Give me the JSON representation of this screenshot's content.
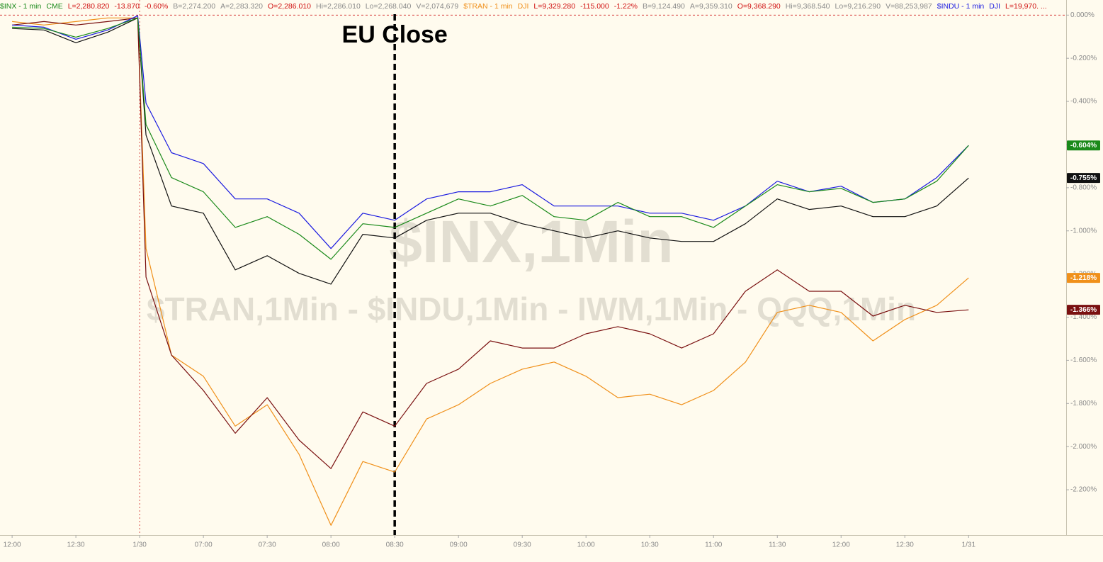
{
  "chart_data": {
    "type": "line",
    "quote_lines": [
      {
        "name": "$INX - 1 min",
        "color": "#1a8a1a",
        "fields": [
          {
            "text": "CME",
            "color": "#1a8a1a"
          },
          {
            "text": "L=2,280.820",
            "color": "#d01010"
          },
          {
            "text": "-13.870",
            "color": "#d01010"
          },
          {
            "text": "-0.60%",
            "color": "#d01010"
          },
          {
            "text": "B=2,274.200",
            "color": "#8a8a8a"
          },
          {
            "text": "A=2,283.320",
            "color": "#8a8a8a"
          },
          {
            "text": "O=2,286.010",
            "color": "#d01010"
          },
          {
            "text": "Hi=2,286.010",
            "color": "#8a8a8a"
          },
          {
            "text": "Lo=2,268.040",
            "color": "#8a8a8a"
          },
          {
            "text": "V=2,074,679",
            "color": "#8a8a8a"
          }
        ]
      },
      {
        "name": "$TRAN - 1 min",
        "color": "#f0901a",
        "fields": [
          {
            "text": "DJI",
            "color": "#f0901a"
          },
          {
            "text": "L=9,329.280",
            "color": "#d01010"
          },
          {
            "text": "-115.000",
            "color": "#d01010"
          },
          {
            "text": "-1.22%",
            "color": "#d01010"
          },
          {
            "text": "B=9,124.490",
            "color": "#8a8a8a"
          },
          {
            "text": "A=9,359.310",
            "color": "#8a8a8a"
          },
          {
            "text": "O=9,368.290",
            "color": "#d01010"
          },
          {
            "text": "Hi=9,368.540",
            "color": "#8a8a8a"
          },
          {
            "text": "Lo=9,216.290",
            "color": "#8a8a8a"
          },
          {
            "text": "V=88,253,987",
            "color": "#8a8a8a"
          }
        ]
      },
      {
        "name": "$INDU - 1 min",
        "color": "#1a1ae0",
        "fields": [
          {
            "text": "DJI",
            "color": "#1a1ae0"
          },
          {
            "text": "L=19,970. ...",
            "color": "#d01010"
          }
        ]
      }
    ],
    "watermark": [
      "$INX,1Min",
      "$TRAN,1Min - $INDU,1Min - IWM,1Min - QQQ,1Min"
    ],
    "annotation": {
      "text": "EU Close",
      "x": 6
    },
    "x": [
      0,
      0.5,
      1,
      1.5,
      1.97,
      2.1,
      2.5,
      3,
      3.5,
      4,
      4.5,
      5,
      5.5,
      6,
      6.5,
      7,
      7.5,
      8,
      8.5,
      9,
      9.5,
      10,
      10.5,
      11,
      11.5,
      12,
      12.5,
      13,
      13.5,
      14,
      14.5,
      15
    ],
    "xlim": [
      -0.19,
      16.53
    ],
    "xticks": [
      {
        "value": 0,
        "label": "12:00"
      },
      {
        "value": 1,
        "label": "12:30"
      },
      {
        "value": 2,
        "label": "1/30"
      },
      {
        "value": 3,
        "label": "07:00"
      },
      {
        "value": 4,
        "label": "07:30"
      },
      {
        "value": 5,
        "label": "08:00"
      },
      {
        "value": 6,
        "label": "08:30"
      },
      {
        "value": 7,
        "label": "09:00"
      },
      {
        "value": 8,
        "label": "09:30"
      },
      {
        "value": 9,
        "label": "10:00"
      },
      {
        "value": 10,
        "label": "10:30"
      },
      {
        "value": 11,
        "label": "11:00"
      },
      {
        "value": 12,
        "label": "11:30"
      },
      {
        "value": 13,
        "label": "12:00"
      },
      {
        "value": 14,
        "label": "12:30"
      },
      {
        "value": 15,
        "label": "1/31"
      }
    ],
    "ylim": [
      -2.41,
      0.07
    ],
    "yticks": [
      {
        "value": 0,
        "label": "0.000%"
      },
      {
        "value": -0.2,
        "label": "-0.200%"
      },
      {
        "value": -0.4,
        "label": "-0.400%"
      },
      {
        "value": -0.6,
        "label": "-0.600%"
      },
      {
        "value": -0.8,
        "label": "-0.800%"
      },
      {
        "value": -1,
        "label": "-1.000%"
      },
      {
        "value": -1.2,
        "label": "-1.200%"
      },
      {
        "value": -1.4,
        "label": "-1.400%"
      },
      {
        "value": -1.6,
        "label": "-1.600%"
      },
      {
        "value": -1.8,
        "label": "-1.800%"
      },
      {
        "value": -2,
        "label": "-2.000%"
      },
      {
        "value": -2.2,
        "label": "-2.200%"
      }
    ],
    "series": [
      {
        "color": "#f0901a",
        "values": [
          -0.03,
          -0.046,
          -0.03,
          -0.013,
          -0.013,
          -1.082,
          -1.576,
          -1.674,
          -1.905,
          -1.806,
          -2.036,
          -2.365,
          -2.069,
          -2.118,
          -1.872,
          -1.806,
          -1.707,
          -1.641,
          -1.608,
          -1.674,
          -1.773,
          -1.757,
          -1.806,
          -1.74,
          -1.609,
          -1.378,
          -1.345,
          -1.378,
          -1.51,
          -1.411,
          -1.345,
          -1.218
        ],
        "value_labels": [
          null,
          null,
          null,
          null,
          null,
          null,
          null,
          null,
          null,
          null,
          null,
          null,
          null,
          null,
          null,
          null,
          null,
          null,
          null,
          null,
          null,
          null,
          null,
          null,
          null,
          null,
          null,
          null,
          null,
          null,
          null,
          "-1.218%"
        ]
      },
      {
        "color": "#7a1010",
        "values": [
          -0.046,
          -0.03,
          -0.046,
          -0.03,
          -0.013,
          -1.214,
          -1.576,
          -1.74,
          -1.938,
          -1.773,
          -1.97,
          -2.102,
          -1.839,
          -1.905,
          -1.707,
          -1.641,
          -1.51,
          -1.543,
          -1.543,
          -1.477,
          -1.444,
          -1.477,
          -1.543,
          -1.477,
          -1.28,
          -1.181,
          -1.28,
          -1.28,
          -1.395,
          -1.345,
          -1.378,
          -1.366
        ],
        "value_labels": [
          null,
          null,
          null,
          null,
          null,
          null,
          null,
          null,
          null,
          null,
          null,
          null,
          null,
          null,
          null,
          null,
          null,
          null,
          null,
          null,
          null,
          null,
          null,
          null,
          null,
          null,
          null,
          null,
          null,
          null,
          null,
          "-1.366%"
        ]
      },
      {
        "color": "#111111",
        "values": [
          -0.062,
          -0.069,
          -0.128,
          -0.079,
          -0.013,
          -0.556,
          -0.885,
          -0.918,
          -1.181,
          -1.115,
          -1.197,
          -1.247,
          -1.016,
          -1.033,
          -0.951,
          -0.918,
          -0.918,
          -0.967,
          -1.0,
          -1.033,
          -1.0,
          -1.033,
          -1.049,
          -1.049,
          -0.967,
          -0.852,
          -0.901,
          -0.885,
          -0.934,
          -0.934,
          -0.885,
          -0.755
        ],
        "value_labels": [
          null,
          null,
          null,
          null,
          null,
          null,
          null,
          null,
          null,
          null,
          null,
          null,
          null,
          null,
          null,
          null,
          null,
          null,
          null,
          null,
          null,
          null,
          null,
          null,
          null,
          null,
          null,
          null,
          null,
          null,
          null,
          "-0.755%"
        ]
      },
      {
        "name": "$INDU - 1 min",
        "color": "#1a1ae0",
        "values": [
          -0.046,
          -0.056,
          -0.112,
          -0.069,
          -0.003,
          -0.408,
          -0.638,
          -0.688,
          -0.852,
          -0.852,
          -0.918,
          -1.082,
          -0.918,
          -0.951,
          -0.852,
          -0.819,
          -0.819,
          -0.786,
          -0.885,
          -0.885,
          -0.885,
          -0.918,
          -0.918,
          -0.951,
          -0.885,
          -0.77,
          -0.819,
          -0.793,
          -0.868,
          -0.852,
          -0.753,
          -0.604
        ]
      },
      {
        "name": "$INX - 1 min",
        "color": "#1a8a1a",
        "values": [
          -0.056,
          -0.062,
          -0.102,
          -0.062,
          -0.013,
          -0.507,
          -0.753,
          -0.819,
          -0.984,
          -0.934,
          -1.016,
          -1.132,
          -0.967,
          -0.984,
          -0.918,
          -0.852,
          -0.885,
          -0.836,
          -0.934,
          -0.951,
          -0.868,
          -0.934,
          -0.934,
          -0.984,
          -0.885,
          -0.786,
          -0.819,
          -0.803,
          -0.868,
          -0.852,
          -0.77,
          -0.604
        ],
        "value_labels": [
          null,
          null,
          null,
          null,
          null,
          null,
          null,
          null,
          null,
          null,
          null,
          null,
          null,
          null,
          null,
          null,
          null,
          null,
          null,
          null,
          null,
          null,
          null,
          null,
          null,
          null,
          null,
          null,
          null,
          null,
          null,
          "-0.604%"
        ]
      }
    ]
  }
}
